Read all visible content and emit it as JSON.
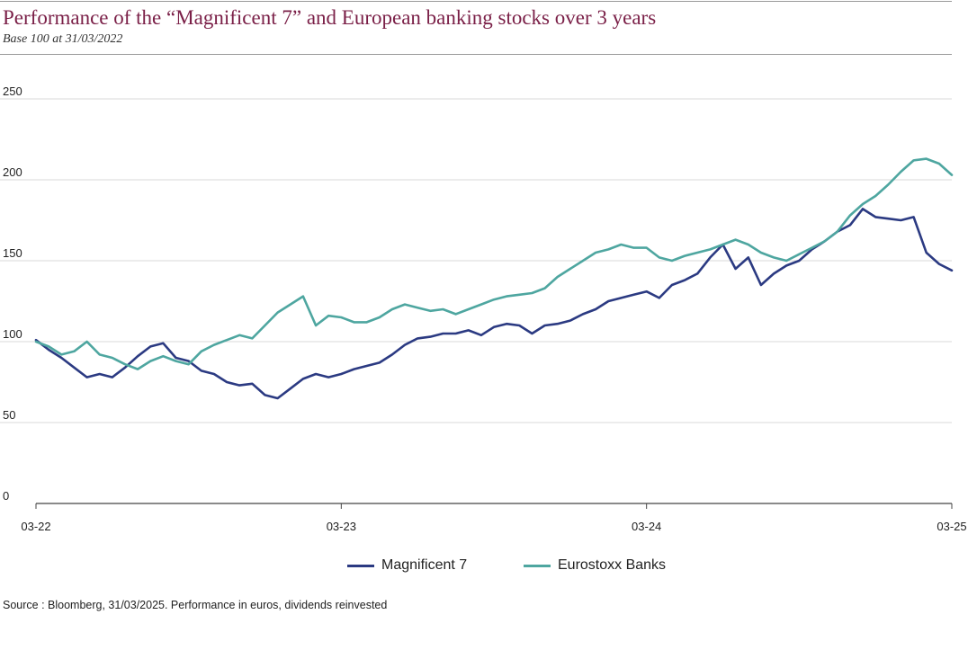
{
  "header": {
    "title": "Performance of the “Magnificent 7” and European banking stocks over 3 years",
    "subtitle": "Base 100 at 31/03/2022"
  },
  "footer": {
    "source": "Source : Bloomberg, 31/03/2025. Performance in euros, dividends reinvested"
  },
  "colors": {
    "title": "#7a1f47",
    "magnificent7": "#2b3a82",
    "eurostoxx_banks": "#4ea6a0",
    "grid": "#d9d9d9",
    "axis": "#444444"
  },
  "chart_data": {
    "type": "line",
    "title": "Performance of the “Magnificent 7” and European banking stocks over 3 years",
    "subtitle": "Base 100 at 31/03/2022",
    "xlabel": "",
    "ylabel": "",
    "xlim": [
      0,
      36
    ],
    "ylim": [
      0,
      250
    ],
    "yticks": [
      0,
      50,
      100,
      150,
      200,
      250
    ],
    "xticks": [
      {
        "pos": 0,
        "label": "03-22"
      },
      {
        "pos": 12,
        "label": "03-23"
      },
      {
        "pos": 24,
        "label": "03-24"
      },
      {
        "pos": 36,
        "label": "03-25"
      }
    ],
    "grid": true,
    "legend_position": "bottom-center",
    "x": [
      0,
      0.5,
      1,
      1.5,
      2,
      2.5,
      3,
      3.5,
      4,
      4.5,
      5,
      5.5,
      6,
      6.5,
      7,
      7.5,
      8,
      8.5,
      9,
      9.5,
      10,
      10.5,
      11,
      11.5,
      12,
      12.5,
      13,
      13.5,
      14,
      14.5,
      15,
      15.5,
      16,
      16.5,
      17,
      17.5,
      18,
      18.5,
      19,
      19.5,
      20,
      20.5,
      21,
      21.5,
      22,
      22.5,
      23,
      23.5,
      24,
      24.5,
      25,
      25.5,
      26,
      26.5,
      27,
      27.5,
      28,
      28.5,
      29,
      29.5,
      30,
      30.5,
      31,
      31.5,
      32,
      32.5,
      33,
      33.5,
      34,
      34.5,
      35,
      35.5,
      36
    ],
    "series": [
      {
        "name": "Magnificent 7",
        "values": [
          101,
          95,
          90,
          84,
          78,
          80,
          78,
          84,
          91,
          97,
          99,
          90,
          88,
          82,
          80,
          75,
          73,
          74,
          67,
          65,
          71,
          77,
          80,
          78,
          80,
          83,
          85,
          87,
          92,
          98,
          102,
          103,
          105,
          105,
          107,
          104,
          109,
          111,
          110,
          105,
          110,
          111,
          113,
          117,
          120,
          125,
          127,
          129,
          131,
          127,
          135,
          138,
          142,
          152,
          160,
          145,
          152,
          135,
          142,
          147,
          150,
          157,
          162,
          168,
          172,
          182,
          177,
          176,
          175,
          177,
          155,
          148,
          144
        ]
      },
      {
        "name": "Eurostoxx Banks",
        "values": [
          100,
          97,
          92,
          94,
          100,
          92,
          90,
          86,
          83,
          88,
          91,
          88,
          86,
          94,
          98,
          101,
          104,
          102,
          110,
          118,
          123,
          128,
          110,
          116,
          115,
          112,
          112,
          115,
          120,
          123,
          121,
          119,
          120,
          117,
          120,
          123,
          126,
          128,
          129,
          130,
          133,
          140,
          145,
          150,
          155,
          157,
          160,
          158,
          158,
          152,
          150,
          153,
          155,
          157,
          160,
          163,
          160,
          155,
          152,
          150,
          154,
          158,
          162,
          168,
          178,
          185,
          190,
          197,
          205,
          212,
          213,
          210,
          203
        ]
      }
    ]
  }
}
